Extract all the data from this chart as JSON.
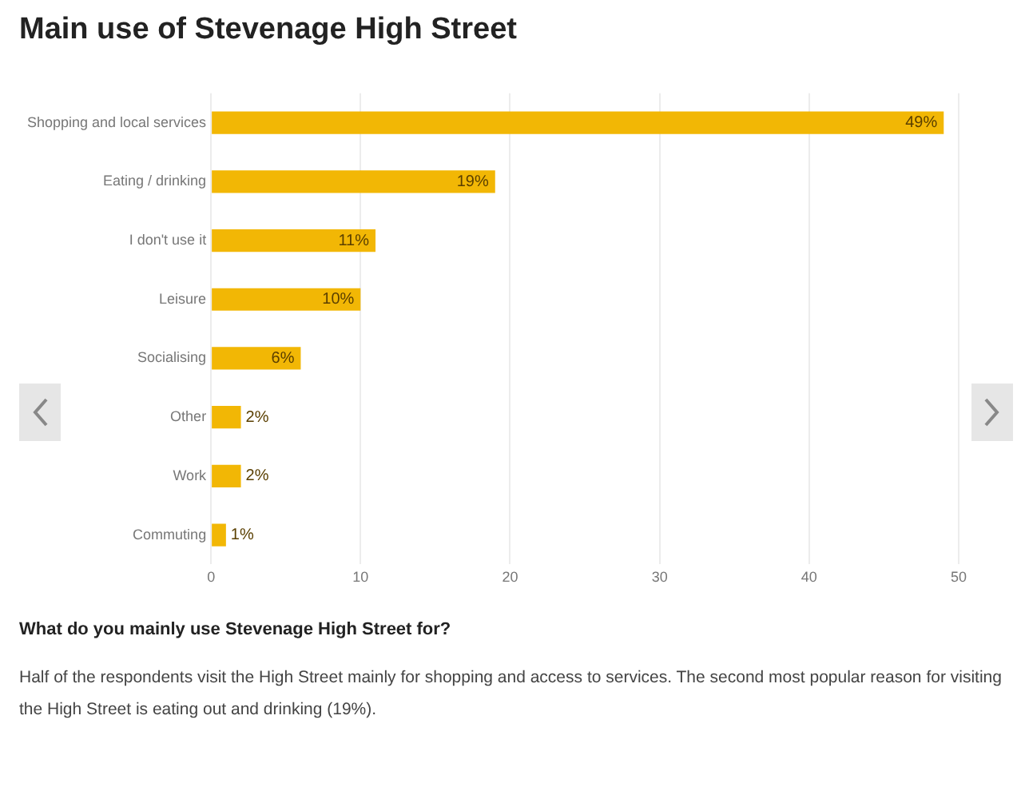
{
  "chart_data": {
    "type": "bar",
    "orientation": "horizontal",
    "title": "Main use of Stevenage High Street",
    "categories": [
      "Shopping and local services",
      "Eating / drinking",
      "I don't use it",
      "Leisure",
      "Socialising",
      "Other",
      "Work",
      "Commuting"
    ],
    "values": [
      49,
      19,
      11,
      10,
      6,
      2,
      2,
      1
    ],
    "value_labels": [
      "49%",
      "19%",
      "11%",
      "10%",
      "6%",
      "2%",
      "2%",
      "1%"
    ],
    "color": "#f2b705",
    "xlim": [
      0,
      50
    ],
    "xticks": [
      0,
      10,
      20,
      30,
      40,
      50
    ],
    "grid": "x",
    "legend": false,
    "annotations": [
      "What do you mainly use Stevenage High Street for?",
      "Half of the respondents visit the High Street mainly for shopping and access to services. The second most popular reason for visiting the High Street is eating out and drinking (19%)."
    ]
  }
}
